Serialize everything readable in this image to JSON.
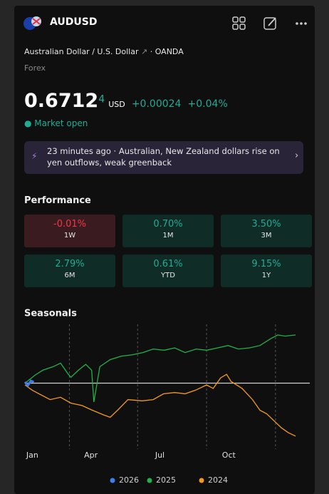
{
  "header": {
    "symbol": "AUDUSD",
    "name": "Australian Dollar / U.S. Dollar",
    "exchange": "OANDA",
    "market": "Forex"
  },
  "quote": {
    "price": "0.6712",
    "price_sup": "4",
    "currency": "USD",
    "change": "+0.00024",
    "change_pct": "+0.04%",
    "status": "Market open"
  },
  "news": {
    "time": "23 minutes ago",
    "headline": "Australian, New Zealand dollars rise on yen outflows, weak greenback"
  },
  "performance": {
    "title": "Performance",
    "items": [
      {
        "value": "-0.01%",
        "period": "1W"
      },
      {
        "value": "0.70%",
        "period": "1M"
      },
      {
        "value": "3.50%",
        "period": "3M"
      },
      {
        "value": "2.79%",
        "period": "6M"
      },
      {
        "value": "0.61%",
        "period": "YTD"
      },
      {
        "value": "9.15%",
        "period": "1Y"
      }
    ]
  },
  "chart_data": {
    "type": "line",
    "title": "Seasonals",
    "xlim": [
      0,
      365
    ],
    "ylim": [
      -5,
      5
    ],
    "xticks": [
      {
        "value": 10,
        "label": "Jan"
      },
      {
        "value": 89,
        "label": "Apr"
      },
      {
        "value": 182,
        "label": "Jul"
      },
      {
        "value": 275,
        "label": "Oct"
      }
    ],
    "xgrid": [
      60,
      152,
      245,
      338
    ],
    "hline": 0,
    "series": [
      {
        "name": "2026",
        "color": "#3d7ff0",
        "x": [
          0,
          4,
          8,
          12
        ],
        "values": [
          0.1,
          -0.2,
          0.2,
          0.1
        ]
      },
      {
        "name": "2025",
        "color": "#21b24b",
        "x": [
          0,
          14,
          24,
          38,
          48,
          58,
          62,
          72,
          82,
          90,
          93,
          96,
          101,
          115,
          130,
          144,
          159,
          173,
          188,
          202,
          216,
          231,
          245,
          260,
          274,
          288,
          303,
          317,
          332,
          341,
          351,
          365
        ],
        "values": [
          0,
          0.7,
          1.1,
          1.4,
          1.7,
          0.8,
          0.5,
          1.1,
          1.6,
          1.1,
          -1.6,
          -0.5,
          1.4,
          2.0,
          2.3,
          2.4,
          2.6,
          2.9,
          2.8,
          3.0,
          2.6,
          2.9,
          2.8,
          3.0,
          3.2,
          2.9,
          3.0,
          3.2,
          3.8,
          4.1,
          4.0,
          4.1
        ]
      },
      {
        "name": "2024",
        "color": "#f39a1e",
        "x": [
          0,
          10,
          19,
          34,
          48,
          62,
          77,
          91,
          106,
          115,
          125,
          139,
          158,
          173,
          187,
          202,
          216,
          230,
          245,
          254,
          264,
          272,
          278,
          293,
          307,
          317,
          326,
          336,
          346,
          355,
          365
        ],
        "values": [
          -0.15,
          -0.6,
          -0.9,
          -1.4,
          -1.2,
          -1.7,
          -1.9,
          -2.3,
          -2.7,
          -2.9,
          -2.3,
          -1.4,
          -1.5,
          -1.4,
          -0.9,
          -0.8,
          -0.9,
          -0.6,
          -0.15,
          -0.45,
          0.45,
          0.75,
          0.15,
          -0.45,
          -1.4,
          -2.3,
          -2.6,
          -3.2,
          -3.8,
          -4.2,
          -4.5
        ]
      }
    ]
  }
}
